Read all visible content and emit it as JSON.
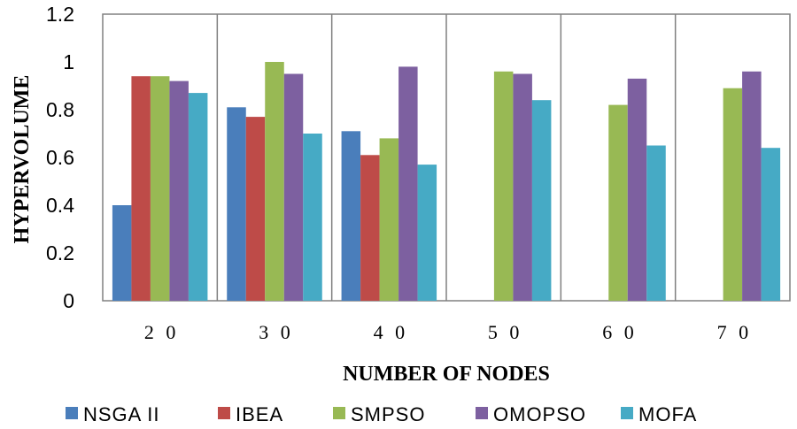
{
  "chart_data": {
    "type": "bar",
    "title": "",
    "xlabel": "NUMBER OF NODES",
    "ylabel": "HYPERVOLUME",
    "categories": [
      "2 0",
      "3 0",
      "4 0",
      "5 0",
      "6 0",
      "7 0"
    ],
    "ylim": [
      0,
      1.2
    ],
    "yticks": [
      "0",
      "0.2",
      "0.4",
      "0.6",
      "0.8",
      "1",
      "1.2"
    ],
    "grid": "vertical",
    "legend_position": "bottom",
    "series": [
      {
        "name": "NSGA II",
        "color": "#4a7ebb",
        "values": [
          0.4,
          0.81,
          0.71,
          null,
          null,
          null
        ]
      },
      {
        "name": "IBEA",
        "color": "#be4b48",
        "values": [
          0.94,
          0.77,
          0.61,
          null,
          null,
          null
        ]
      },
      {
        "name": "SMPSO",
        "color": "#98b954",
        "values": [
          0.94,
          1.0,
          0.68,
          0.96,
          0.82,
          0.89
        ]
      },
      {
        "name": "OMOPSO",
        "color": "#7d60a0",
        "values": [
          0.92,
          0.95,
          0.98,
          0.95,
          0.93,
          0.96
        ]
      },
      {
        "name": "MOFA",
        "color": "#46aac5",
        "values": [
          0.87,
          0.7,
          0.57,
          0.84,
          0.65,
          0.64
        ]
      }
    ]
  }
}
